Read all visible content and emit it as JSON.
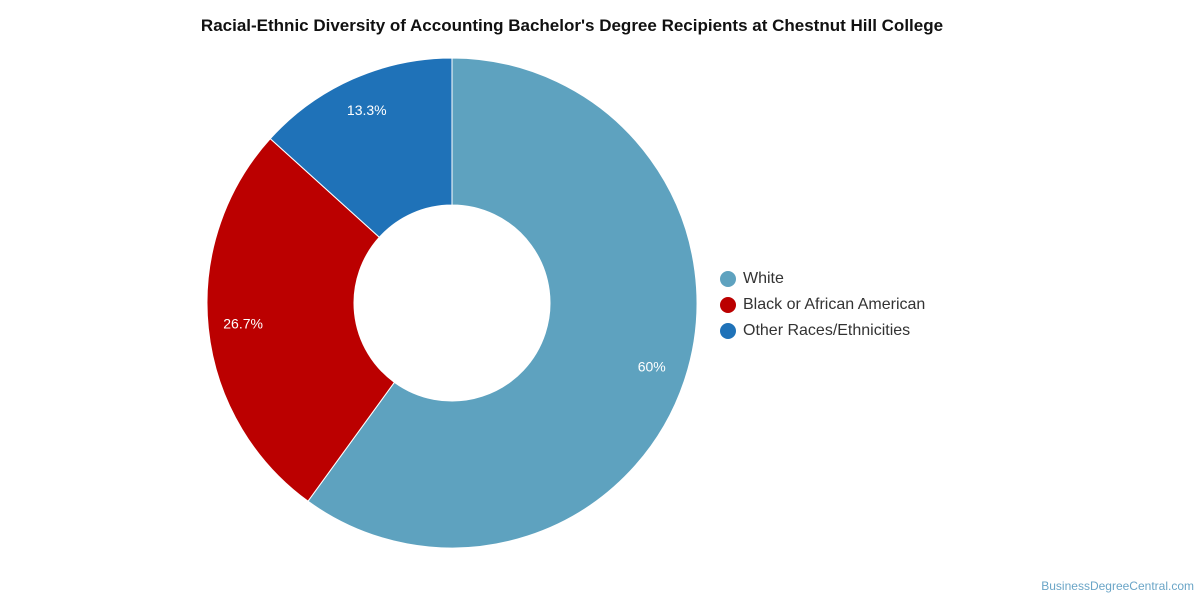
{
  "title": "Racial-Ethnic Diversity of Accounting Bachelor's Degree Recipients at Chestnut Hill College",
  "source_credit": "BusinessDegreeCentral.com",
  "chart_data": {
    "type": "pie",
    "variant": "donut",
    "title": "Racial-Ethnic Diversity of Accounting Bachelor's Degree Recipients at Chestnut Hill College",
    "legend_position": "right",
    "categories": [
      "White",
      "Black or African American",
      "Other Races/Ethnicities"
    ],
    "values": [
      60,
      26.7,
      13.3
    ],
    "labels": [
      "60%",
      "26.7%",
      "13.3%"
    ],
    "colors": [
      "#5ea2bf",
      "#bb0000",
      "#1f72b8"
    ]
  }
}
